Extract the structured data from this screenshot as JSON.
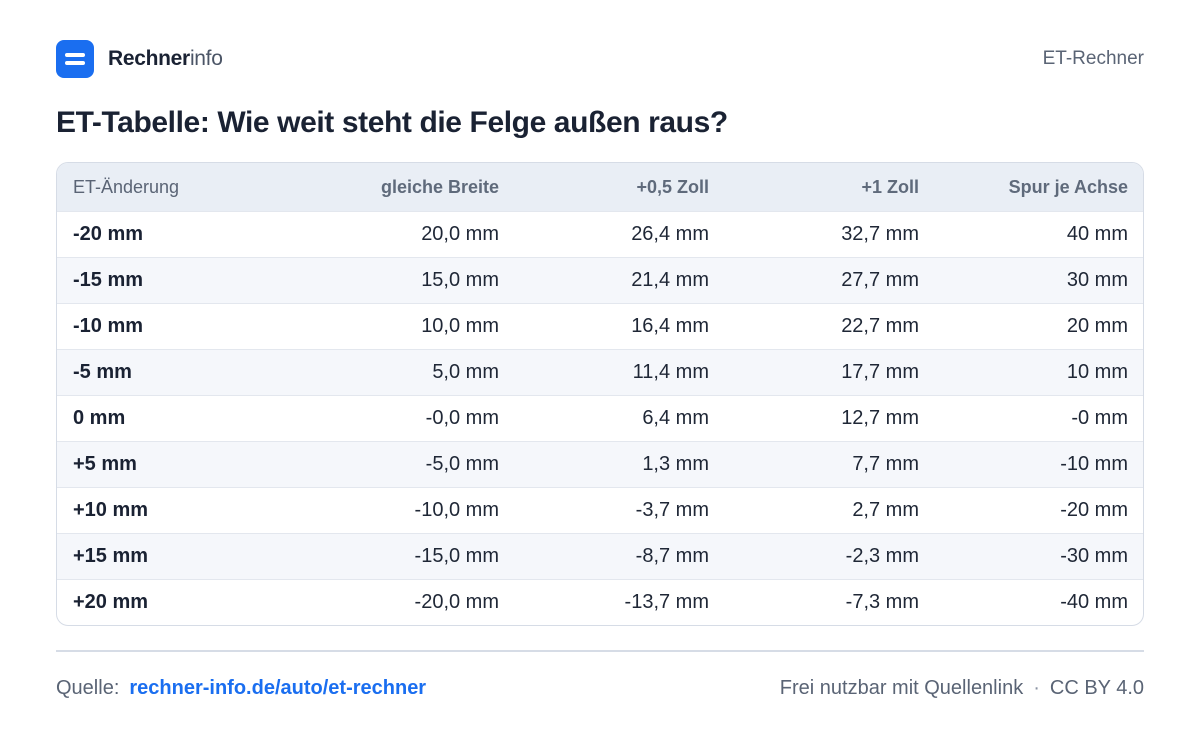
{
  "header": {
    "brand_strong": "Rechner",
    "brand_light": "info",
    "right_label": "ET-Rechner"
  },
  "title": "ET-Tabelle:  Wie weit steht die Felge außen raus?",
  "table": {
    "columns": [
      "ET-Änderung",
      "gleiche Breite",
      "+0,5 Zoll",
      "+1 Zoll",
      "Spur je Achse"
    ],
    "rows": [
      [
        "-20 mm",
        "20,0 mm",
        "26,4 mm",
        "32,7 mm",
        "40 mm"
      ],
      [
        "-15 mm",
        "15,0 mm",
        "21,4 mm",
        "27,7 mm",
        "30 mm"
      ],
      [
        "-10 mm",
        "10,0 mm",
        "16,4 mm",
        "22,7 mm",
        "20 mm"
      ],
      [
        "-5 mm",
        "5,0 mm",
        "11,4 mm",
        "17,7 mm",
        "10 mm"
      ],
      [
        "0 mm",
        "-0,0 mm",
        "6,4 mm",
        "12,7 mm",
        "-0 mm"
      ],
      [
        "+5 mm",
        "-5,0 mm",
        "1,3 mm",
        "7,7 mm",
        "-10 mm"
      ],
      [
        "+10 mm",
        "-10,0 mm",
        "-3,7 mm",
        "2,7 mm",
        "-20 mm"
      ],
      [
        "+15 mm",
        "-15,0 mm",
        "-8,7 mm",
        "-2,3 mm",
        "-30 mm"
      ],
      [
        "+20 mm",
        "-20,0 mm",
        "-13,7 mm",
        "-7,3 mm",
        "-40 mm"
      ]
    ]
  },
  "footer": {
    "source_label": "Quelle:",
    "source_link": "rechner-info.de/auto/et-rechner",
    "license_text": "Frei nutzbar mit Quellenlink",
    "separator": "·",
    "license_name": "CC BY 4.0"
  },
  "colors": {
    "accent": "#1a6ef0",
    "header_bg": "#e9eef5",
    "alt_row_bg": "#f5f7fb",
    "border": "#d6dce6"
  }
}
